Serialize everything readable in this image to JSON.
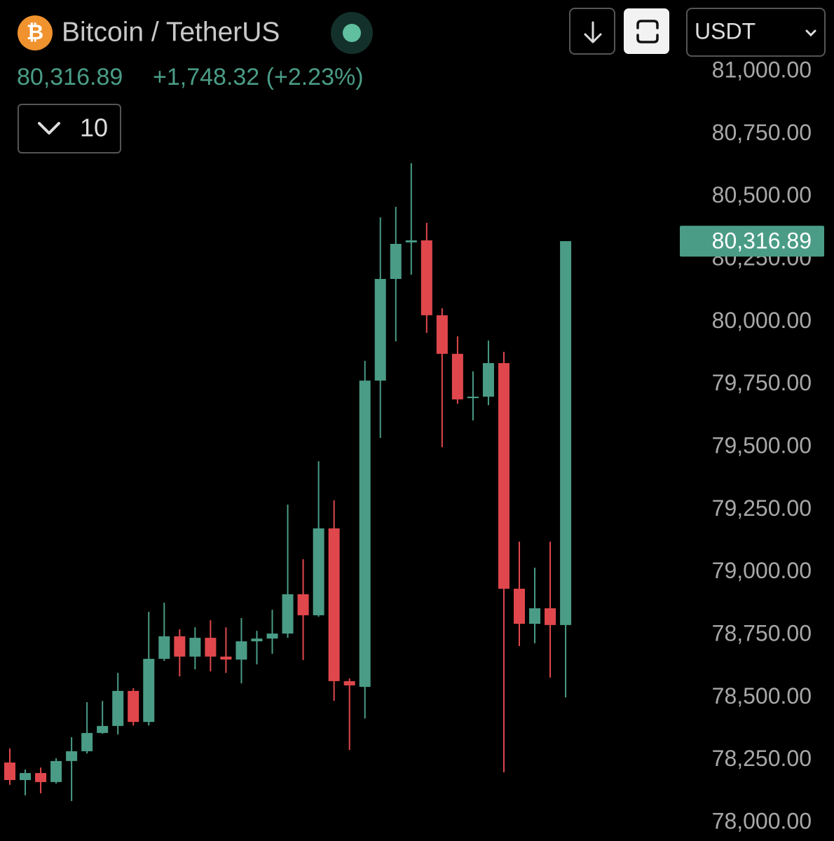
{
  "chart_data": {
    "type": "candlestick",
    "icon_symbol": "₿",
    "title": "Bitcoin / TetherUS",
    "last_price": {
      "value": 80316.89,
      "label": "80,316.89"
    },
    "change_label": "+1,748.32 (+2.23%)",
    "interval": "10",
    "currency": "USDT",
    "up_color": "#4a9c86",
    "down_color": "#e0474c",
    "open": [
      78235,
      78165,
      78193,
      78157,
      78241,
      78280,
      78353,
      78381,
      78521,
      78397,
      78649,
      78739,
      78658,
      78733,
      78658,
      78646,
      78719,
      78730,
      78750,
      78907,
      78823,
      79170,
      78560,
      78537,
      79760,
      80166,
      80312,
      80320,
      80021,
      79867,
      79690,
      79696,
      79830,
      78929,
      78789,
      78851,
      78784
    ],
    "high": [
      78291,
      78207,
      78215,
      78252,
      78336,
      78476,
      78481,
      78593,
      78532,
      78837,
      78873,
      78767,
      78775,
      78803,
      78775,
      78812,
      78761,
      78845,
      79265,
      79047,
      79438,
      79282,
      78571,
      79839,
      80412,
      80454,
      80628,
      80390,
      80049,
      79937,
      79797,
      79920,
      79875,
      79117,
      79013,
      79117,
      80316.89
    ],
    "low": [
      78146,
      78104,
      78112,
      78151,
      78081,
      78271,
      78350,
      78347,
      78383,
      78383,
      78641,
      78579,
      78607,
      78599,
      78593,
      78551,
      78627,
      78669,
      78733,
      78644,
      78817,
      78481,
      78285,
      78411,
      79531,
      79917,
      80183,
      79951,
      79494,
      79668,
      79601,
      79662,
      78196,
      78700,
      78711,
      78574,
      78495
    ],
    "close": [
      78165,
      78193,
      78157,
      78241,
      78280,
      78353,
      78381,
      78521,
      78397,
      78649,
      78739,
      78658,
      78733,
      78658,
      78646,
      78719,
      78730,
      78750,
      78907,
      78823,
      79170,
      78560,
      78543,
      79760,
      80166,
      80306,
      80320,
      80021,
      79867,
      79685,
      79696,
      79830,
      78929,
      78789,
      78851,
      78784,
      80316.89
    ],
    "ylim": [
      78000,
      81000
    ],
    "yticks": [
      {
        "value": 81000,
        "label": "81,000.00"
      },
      {
        "value": 80750,
        "label": "80,750.00"
      },
      {
        "value": 80500,
        "label": "80,500.00"
      },
      {
        "value": 80250,
        "label": "80,250.00"
      },
      {
        "value": 80000,
        "label": "80,000.00"
      },
      {
        "value": 79750,
        "label": "79,750.00"
      },
      {
        "value": 79500,
        "label": "79,500.00"
      },
      {
        "value": 79250,
        "label": "79,250.00"
      },
      {
        "value": 79000,
        "label": "79,000.00"
      },
      {
        "value": 78750,
        "label": "78,750.00"
      },
      {
        "value": 78500,
        "label": "78,500.00"
      },
      {
        "value": 78250,
        "label": "78,250.00"
      },
      {
        "value": 78000,
        "label": "78,000.00"
      }
    ]
  }
}
